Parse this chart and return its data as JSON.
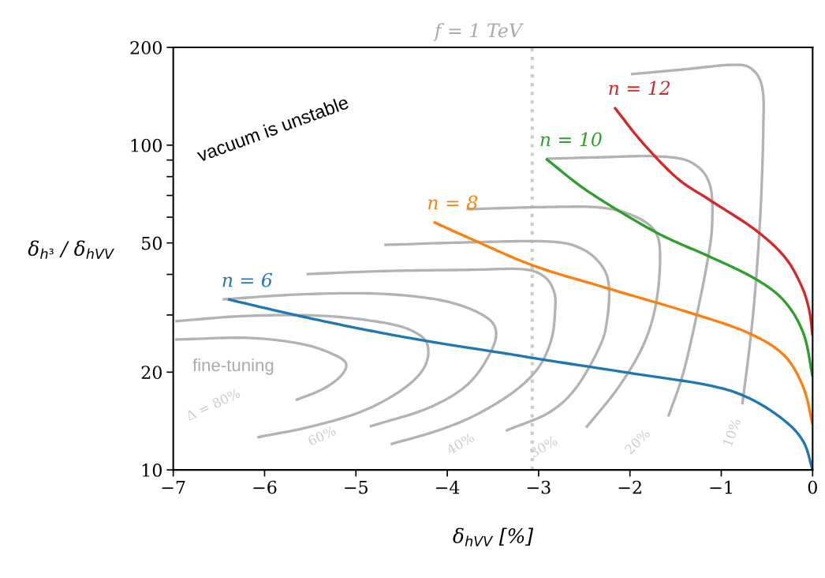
{
  "chart_data": {
    "type": "line",
    "xlabel": "δ$_{hVV}$ [%]",
    "ylabel": "δ$_{h³}$ / δ$_{hVV}$",
    "log": "y",
    "xlim": [
      -7,
      0
    ],
    "ylim": [
      10,
      200
    ],
    "xticks": [
      {
        "value": -7,
        "label": "−7"
      },
      {
        "value": -6,
        "label": "−6"
      },
      {
        "value": -5,
        "label": "−5"
      },
      {
        "value": -4,
        "label": "−4"
      },
      {
        "value": -3,
        "label": "−3"
      },
      {
        "value": -2,
        "label": "−2"
      },
      {
        "value": -1,
        "label": "−1"
      },
      0
    ],
    "yticks": [
      10,
      20,
      {
        "value": 30,
        "label": null
      },
      {
        "value": 40,
        "label": null
      },
      50,
      {
        "value": 60,
        "label": null
      },
      {
        "value": 70,
        "label": null
      },
      {
        "value": 80,
        "label": null
      },
      {
        "value": 90,
        "label": null
      },
      100,
      200
    ],
    "grid": false,
    "legend": false,
    "marker": "none",
    "line_style": "solid",
    "ref_lines": [
      {
        "axis": "x",
        "value": -3.07,
        "color": "#cccccc",
        "line_style": "dotted"
      }
    ],
    "annotations": [
      "vacuum is unstable",
      "fine-tuning",
      "f = 1 TeV",
      "Δ = 80%",
      "60%",
      "40%",
      "30%",
      "20%",
      "10%"
    ],
    "series": [
      {
        "color": "#b3b3b3",
        "x": [
          -6.98,
          -6.19,
          -5.62,
          -5.28,
          -5.11,
          -5.17,
          -5.37,
          -5.66
        ],
        "values": [
          25.2,
          25.5,
          24.5,
          22.9,
          21.3,
          19.4,
          17.7,
          16.4
        ]
      },
      {
        "color": "#b3b3b3",
        "x": [
          -6.98,
          -6.19,
          -5.34,
          -4.64,
          -4.32,
          -4.21,
          -4.26,
          -4.49,
          -4.92,
          -5.49,
          -6.08
        ],
        "values": [
          28.7,
          29.8,
          29.8,
          28.2,
          26.2,
          23.8,
          20.5,
          17.7,
          15.2,
          13.6,
          12.6
        ]
      },
      {
        "color": "#b3b3b3",
        "x": [
          -6.46,
          -5.62,
          -4.77,
          -4.07,
          -3.64,
          -3.47,
          -3.53,
          -3.78,
          -4.21,
          -4.85
        ],
        "values": [
          33.5,
          34.7,
          34.9,
          33.3,
          30.3,
          27.1,
          22.9,
          18.3,
          15.5,
          13.6
        ]
      },
      {
        "color": "#b3b3b3",
        "x": [
          -5.54,
          -4.62,
          -3.77,
          -3.18,
          -2.94,
          -2.83,
          -2.82,
          -2.86,
          -3.0,
          -3.26,
          -3.68,
          -4.11,
          -4.62
        ],
        "values": [
          40.1,
          41.0,
          41.3,
          41.5,
          39.4,
          35.3,
          30.8,
          25.2,
          20.7,
          17.5,
          14.8,
          13.2,
          12.0
        ]
      },
      {
        "color": "#b3b3b3",
        "x": [
          -4.69,
          -3.77,
          -2.89,
          -2.53,
          -2.31,
          -2.23,
          -2.25,
          -2.33,
          -2.59,
          -2.89,
          -3.36
        ],
        "values": [
          49.3,
          50.2,
          50.5,
          48.0,
          42.6,
          36.7,
          29.0,
          24.0,
          17.9,
          15.0,
          13.2
        ]
      },
      {
        "color": "#b3b3b3",
        "x": [
          -3.79,
          -2.89,
          -2.31,
          -1.95,
          -1.72,
          -1.67,
          -1.72,
          -1.86,
          -2.13,
          -2.48
        ],
        "values": [
          63.5,
          64.5,
          64.2,
          60.4,
          54.0,
          44.4,
          31.9,
          24.0,
          17.9,
          13.5
        ]
      },
      {
        "color": "#b3b3b3",
        "x": [
          -2.92,
          -2.31,
          -1.72,
          -1.34,
          -1.13,
          -1.1,
          -1.16,
          -1.28,
          -1.42,
          -1.58
        ],
        "values": [
          90.8,
          91.8,
          92.4,
          88.8,
          76.3,
          57.0,
          42.6,
          29.0,
          19.7,
          14.6
        ]
      },
      {
        "color": "#b3b3b3",
        "x": [
          -1.99,
          -1.42,
          -0.87,
          -0.66,
          -0.55,
          -0.54,
          -0.57,
          -0.63,
          -0.69,
          -0.77
        ],
        "values": [
          165.4,
          171.0,
          176.8,
          171.0,
          149.5,
          112.4,
          62.8,
          35.3,
          24.0,
          15.9
        ]
      },
      {
        "name": "n = 6",
        "color": "#1f77b4",
        "x": [
          -6.4,
          -5.62,
          -4.92,
          -4.21,
          -3.22,
          -3.06,
          -2.01,
          -1.13,
          -0.69,
          -0.31,
          -0.1,
          0
        ],
        "values": [
          33.5,
          29.8,
          27.1,
          24.9,
          22.5,
          22.1,
          19.9,
          18.2,
          16.6,
          14.2,
          12.2,
          10
        ]
      },
      {
        "name": "n = 8",
        "color": "#ff7f0e",
        "x": [
          -4.15,
          -3.77,
          -3.06,
          -2.31,
          -1.28,
          -0.69,
          -0.31,
          -0.1,
          0
        ],
        "values": [
          58.0,
          51.9,
          42.6,
          36.7,
          30.1,
          26.3,
          22.5,
          17.9,
          13.8
        ]
      },
      {
        "name": "n = 10",
        "color": "#2ca02c",
        "x": [
          -2.92,
          -2.45,
          -1.72,
          -1.13,
          -0.63,
          -0.31,
          -0.1,
          0
        ],
        "values": [
          90.8,
          71.8,
          54.0,
          45.4,
          38.8,
          33.1,
          26.3,
          19.4
        ]
      },
      {
        "name": "n = 12",
        "color": "#d62728",
        "x": [
          -2.17,
          -1.86,
          -1.48,
          -1.13,
          -0.63,
          -0.31,
          -0.13,
          -0.04,
          0
        ],
        "values": [
          130.7,
          101.6,
          79.0,
          67.9,
          54.9,
          45.4,
          37.3,
          31.3,
          25.9
        ]
      }
    ]
  }
}
